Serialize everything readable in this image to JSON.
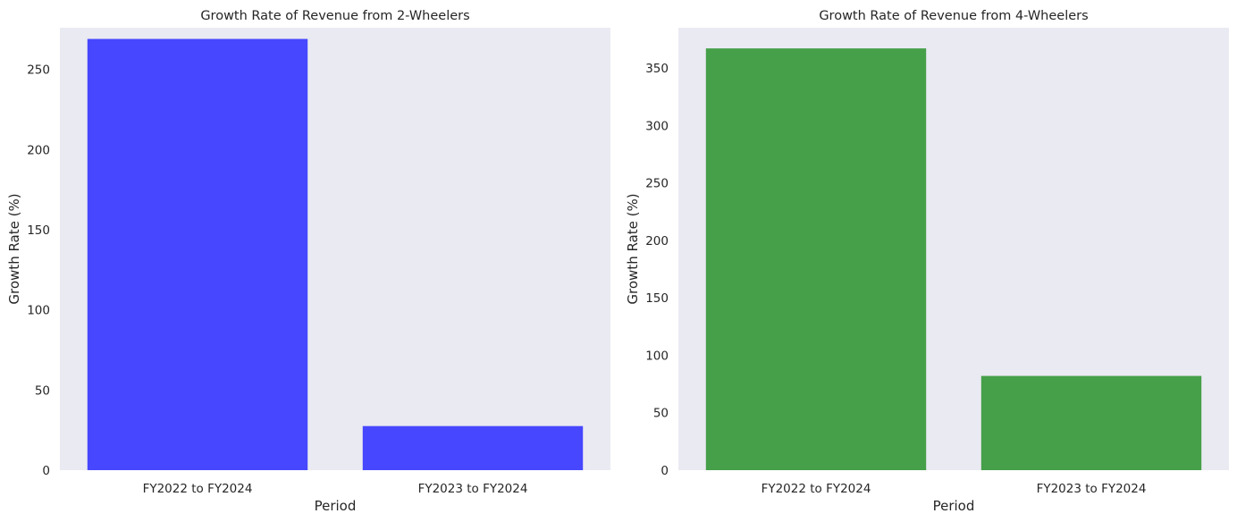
{
  "chart_data": [
    {
      "type": "bar",
      "title": "Growth Rate of Revenue from 2-Wheelers",
      "xlabel": "Period",
      "ylabel": "Growth Rate (%)",
      "categories": [
        "FY2022 to FY2024",
        "FY2023 to FY2024"
      ],
      "values": [
        269,
        27.5
      ],
      "ylim": [
        0,
        276
      ],
      "yticks": [
        0,
        50,
        100,
        150,
        200,
        250
      ],
      "color": "#4747ff",
      "grid": false
    },
    {
      "type": "bar",
      "title": "Growth Rate of Revenue from 4-Wheelers",
      "xlabel": "Period",
      "ylabel": "Growth Rate (%)",
      "categories": [
        "FY2022 to FY2024",
        "FY2023 to FY2024"
      ],
      "values": [
        367,
        82
      ],
      "ylim": [
        0,
        385
      ],
      "yticks": [
        0,
        50,
        100,
        150,
        200,
        250,
        300,
        350
      ],
      "color": "#469f49",
      "grid": false
    }
  ],
  "style": {
    "plot_background": "#eaeaf2"
  }
}
